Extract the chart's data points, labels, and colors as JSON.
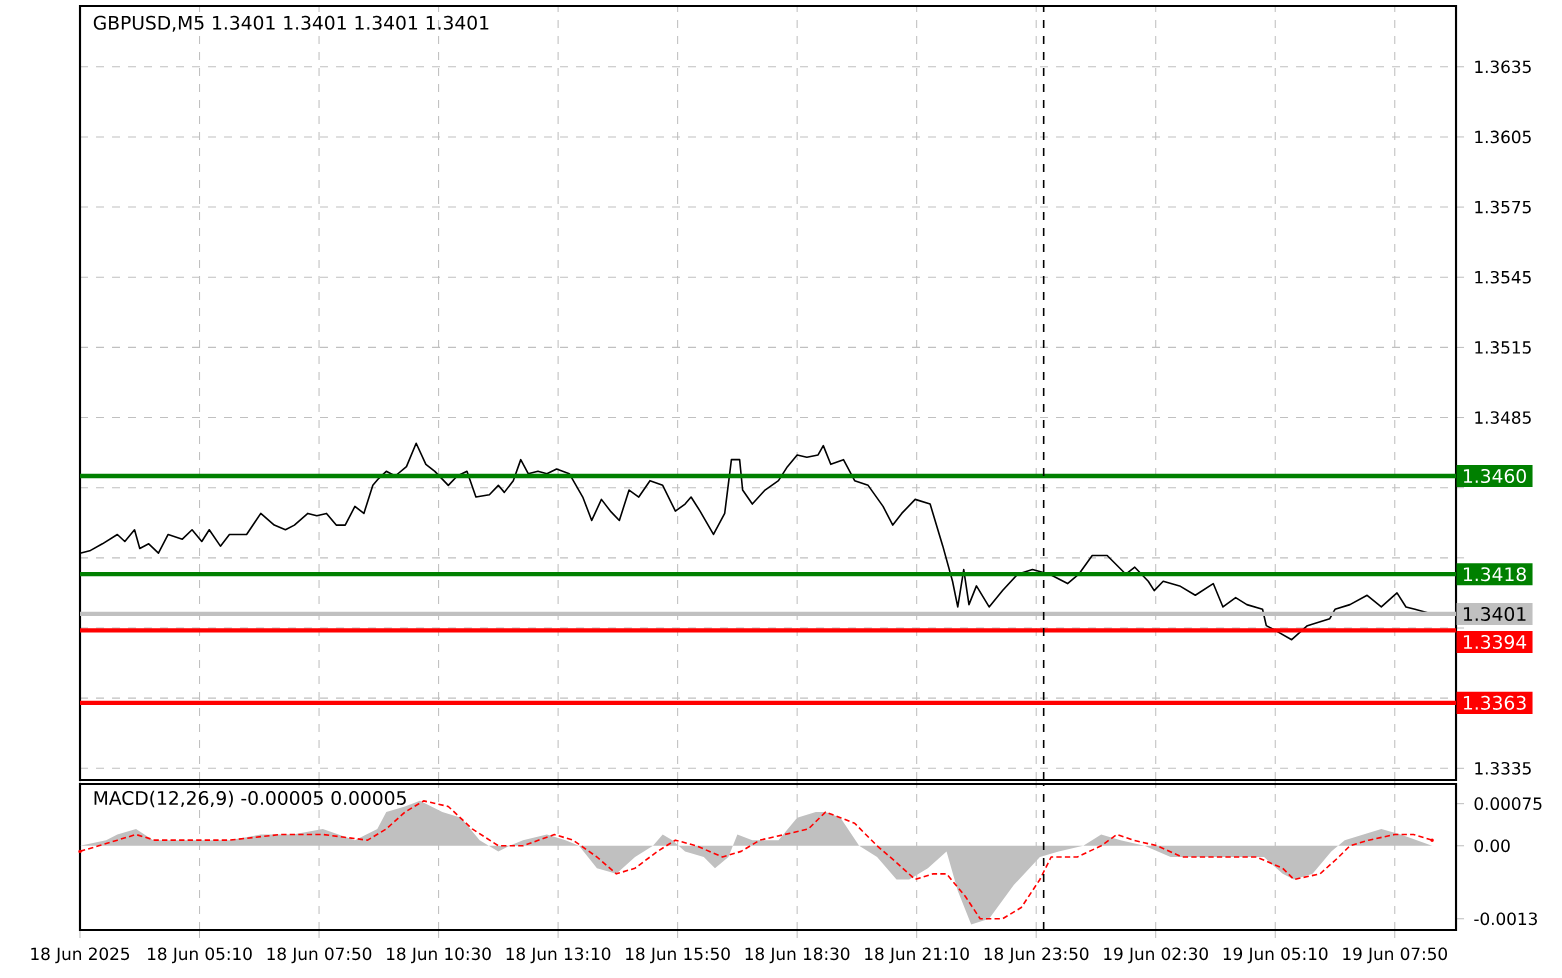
{
  "chart_data": [
    {
      "type": "line",
      "title": "GBPUSD,M5  1.3401 1.3401 1.3401 1.3401",
      "series": [
        {
          "color": "#000000",
          "x": [
            "2025-06-18T02:30",
            "2025-06-18T02:43",
            "2025-06-18T03:00",
            "2025-06-18T03:20",
            "2025-06-18T03:30",
            "2025-06-18T03:43",
            "2025-06-18T03:50",
            "2025-06-18T04:02",
            "2025-06-18T04:15",
            "2025-06-18T04:28",
            "2025-06-18T04:47",
            "2025-06-18T05:00",
            "2025-06-18T05:13",
            "2025-06-18T05:23",
            "2025-06-18T05:38",
            "2025-06-18T05:50",
            "2025-06-18T06:13",
            "2025-06-18T06:32",
            "2025-06-18T06:50",
            "2025-06-18T07:05",
            "2025-06-18T07:17",
            "2025-06-18T07:35",
            "2025-06-18T07:47",
            "2025-06-18T08:00",
            "2025-06-18T08:13",
            "2025-06-18T08:25",
            "2025-06-18T08:38",
            "2025-06-18T08:50",
            "2025-06-18T09:02",
            "2025-06-18T09:10",
            "2025-06-18T09:20",
            "2025-06-18T09:32",
            "2025-06-18T09:47",
            "2025-06-18T10:00",
            "2025-06-18T10:13",
            "2025-06-18T10:25",
            "2025-06-18T10:43",
            "2025-06-18T10:55",
            "2025-06-18T11:08",
            "2025-06-18T11:20",
            "2025-06-18T11:38",
            "2025-06-18T11:50",
            "2025-06-18T11:58",
            "2025-06-18T12:10",
            "2025-06-18T12:20",
            "2025-06-18T12:30",
            "2025-06-18T12:43",
            "2025-06-18T12:55",
            "2025-06-18T13:08",
            "2025-06-18T13:25",
            "2025-06-18T13:43",
            "2025-06-18T13:55",
            "2025-06-18T14:08",
            "2025-06-18T14:20",
            "2025-06-18T14:32",
            "2025-06-18T14:45",
            "2025-06-18T14:58",
            "2025-06-18T15:13",
            "2025-06-18T15:30",
            "2025-06-18T15:47",
            "2025-06-18T16:00",
            "2025-06-18T16:08",
            "2025-06-18T16:20",
            "2025-06-18T16:38",
            "2025-06-18T16:53",
            "2025-06-18T17:02",
            "2025-06-18T17:13",
            "2025-06-18T17:17",
            "2025-06-18T17:30",
            "2025-06-18T17:47",
            "2025-06-18T18:05",
            "2025-06-18T18:17",
            "2025-06-18T18:30",
            "2025-06-18T18:43",
            "2025-06-18T18:58",
            "2025-06-18T19:05",
            "2025-06-18T19:15",
            "2025-06-18T19:32",
            "2025-06-18T19:47",
            "2025-06-18T20:05",
            "2025-06-18T20:25",
            "2025-06-18T20:38",
            "2025-06-18T20:50",
            "2025-06-18T21:08",
            "2025-06-18T21:28",
            "2025-06-18T21:45",
            "2025-06-18T21:58",
            "2025-06-18T22:05",
            "2025-06-18T22:13",
            "2025-06-18T22:20",
            "2025-06-18T22:30",
            "2025-06-18T22:47",
            "2025-06-18T23:05",
            "2025-06-18T23:25",
            "2025-06-18T23:45",
            "2025-06-19T00:08",
            "2025-06-19T00:32",
            "2025-06-19T00:47",
            "2025-06-19T01:05",
            "2025-06-19T01:25",
            "2025-06-19T01:50",
            "2025-06-19T02:02",
            "2025-06-19T02:20",
            "2025-06-19T02:28",
            "2025-06-19T02:40",
            "2025-06-19T03:02",
            "2025-06-19T03:23",
            "2025-06-19T03:47",
            "2025-06-19T04:00",
            "2025-06-19T04:17",
            "2025-06-19T04:32",
            "2025-06-19T04:53",
            "2025-06-19T04:58",
            "2025-06-19T05:10",
            "2025-06-19T05:32",
            "2025-06-19T05:53",
            "2025-06-19T06:23",
            "2025-06-19T06:30",
            "2025-06-19T06:50",
            "2025-06-19T07:13",
            "2025-06-19T07:32",
            "2025-06-19T07:53",
            "2025-06-19T08:05",
            "2025-06-19T08:17",
            "2025-06-19T08:40"
          ],
          "values": [
            1.3427,
            1.3428,
            1.3431,
            1.3435,
            1.3432,
            1.3437,
            1.3429,
            1.3431,
            1.3427,
            1.3435,
            1.3433,
            1.3437,
            1.3432,
            1.3437,
            1.343,
            1.3435,
            1.3435,
            1.3444,
            1.3439,
            1.3437,
            1.3439,
            1.3444,
            1.3443,
            1.3444,
            1.3439,
            1.3439,
            1.3447,
            1.3444,
            1.3456,
            1.3459,
            1.3462,
            1.346,
            1.3464,
            1.3474,
            1.3465,
            1.3462,
            1.3456,
            1.346,
            1.3462,
            1.3451,
            1.3452,
            1.3456,
            1.3453,
            1.3458,
            1.3467,
            1.3461,
            1.3462,
            1.3461,
            1.3463,
            1.3461,
            1.3451,
            1.3441,
            1.345,
            1.3445,
            1.3441,
            1.3454,
            1.3451,
            1.3458,
            1.3456,
            1.3445,
            1.3448,
            1.3451,
            1.3445,
            1.3435,
            1.3444,
            1.3467,
            1.3467,
            1.3454,
            1.3448,
            1.3454,
            1.3458,
            1.3464,
            1.3469,
            1.3468,
            1.3469,
            1.3473,
            1.3465,
            1.3467,
            1.3458,
            1.3456,
            1.3447,
            1.3439,
            1.3444,
            1.345,
            1.3448,
            1.343,
            1.3415,
            1.3404,
            1.342,
            1.3405,
            1.3413,
            1.3404,
            1.3411,
            1.3418,
            1.342,
            1.3418,
            1.3414,
            1.3418,
            1.3426,
            1.3426,
            1.3418,
            1.3421,
            1.3415,
            1.3411,
            1.3415,
            1.3413,
            1.3409,
            1.3414,
            1.3404,
            1.3408,
            1.3405,
            1.3403,
            1.3396,
            1.3394,
            1.339,
            1.3396,
            1.3399,
            1.3403,
            1.3405,
            1.3409,
            1.3404,
            1.341,
            1.3404,
            1.3403,
            1.3401
          ]
        }
      ],
      "xlim": [
        "2025-06-18T02:30",
        "2025-06-19T09:12"
      ],
      "ylim": [
        1.333,
        1.3661
      ],
      "xticks": [
        {
          "value": "2025-06-18T02:30",
          "label": null
        },
        {
          "value": "2025-06-18T05:10",
          "label": null
        },
        {
          "value": "2025-06-18T07:50",
          "label": null
        },
        {
          "value": "2025-06-18T10:30",
          "label": null
        },
        {
          "value": "2025-06-18T13:10",
          "label": null
        },
        {
          "value": "2025-06-18T15:50",
          "label": null
        },
        {
          "value": "2025-06-18T18:30",
          "label": null
        },
        {
          "value": "2025-06-18T21:10",
          "label": null
        },
        {
          "value": "2025-06-18T23:50",
          "label": null
        },
        {
          "value": "2025-06-19T02:30",
          "label": null
        },
        {
          "value": "2025-06-19T05:10",
          "label": null
        },
        {
          "value": "2025-06-19T07:50",
          "label": null
        }
      ],
      "yticks": [
        {
          "value": 1.3635,
          "label": "1.3635"
        },
        {
          "value": 1.3605,
          "label": "1.3605"
        },
        {
          "value": 1.3575,
          "label": "1.3575"
        },
        {
          "value": 1.3545,
          "label": "1.3545"
        },
        {
          "value": 1.3515,
          "label": "1.3515"
        },
        {
          "value": 1.3485,
          "label": "1.3485"
        },
        {
          "value": 1.3455,
          "label": null
        },
        {
          "value": 1.3425,
          "label": null
        },
        {
          "value": 1.3395,
          "label": null
        },
        {
          "value": 1.3365,
          "label": null
        },
        {
          "value": 1.3335,
          "label": "1.3335"
        }
      ],
      "tick_labels": "y",
      "grid": true,
      "ref_lines": [
        {
          "axis": "y",
          "value": 1.346,
          "label": "1.3460",
          "color": "#008000"
        },
        {
          "axis": "y",
          "value": 1.3418,
          "label": "1.3418",
          "color": "#008000"
        },
        {
          "axis": "y",
          "value": 1.3401,
          "label": "1.3401",
          "color": "#c0c0c0"
        },
        {
          "axis": "y",
          "value": 1.3394,
          "label": "1.3394",
          "color": "#ff0000"
        },
        {
          "axis": "y",
          "value": 1.3363,
          "label": "1.3363",
          "color": "#ff0000"
        },
        {
          "axis": "x",
          "value": "2025-06-19T00:00",
          "color": "#000000",
          "line_style": "dashed"
        }
      ]
    },
    {
      "type": "line",
      "title": "MACD(12,26,9) -0.00005 0.00005",
      "series": [
        {
          "type": "area",
          "color": "#c0c0c0",
          "x": [
            "2025-06-18T02:30",
            "2025-06-18T03:05",
            "2025-06-18T03:20",
            "2025-06-18T03:45",
            "2025-06-18T04:08",
            "2025-06-18T04:28",
            "2025-06-18T05:50",
            "2025-06-18T06:32",
            "2025-06-18T07:15",
            "2025-06-18T07:55",
            "2025-06-18T08:38",
            "2025-06-18T09:08",
            "2025-06-18T09:20",
            "2025-06-18T09:45",
            "2025-06-18T10:05",
            "2025-06-18T10:35",
            "2025-06-18T11:00",
            "2025-06-18T11:25",
            "2025-06-18T11:50",
            "2025-06-18T12:05",
            "2025-06-18T12:23",
            "2025-06-18T12:55",
            "2025-06-18T13:20",
            "2025-06-18T13:38",
            "2025-06-18T14:02",
            "2025-06-18T14:28",
            "2025-06-18T14:53",
            "2025-06-18T15:17",
            "2025-06-18T15:30",
            "2025-06-18T15:43",
            "2025-06-18T16:00",
            "2025-06-18T16:25",
            "2025-06-18T16:40",
            "2025-06-18T16:58",
            "2025-06-18T17:10",
            "2025-06-18T17:30",
            "2025-06-18T18:05",
            "2025-06-18T18:30",
            "2025-06-18T18:55",
            "2025-06-18T19:08",
            "2025-06-18T19:28",
            "2025-06-18T19:53",
            "2025-06-18T20:17",
            "2025-06-18T20:43",
            "2025-06-18T21:00",
            "2025-06-18T21:25",
            "2025-06-18T21:50",
            "2025-06-18T22:05",
            "2025-06-18T22:23",
            "2025-06-18T22:47",
            "2025-06-18T23:20",
            "2025-06-18T23:55",
            "2025-06-19T00:20",
            "2025-06-19T00:53",
            "2025-06-19T01:17",
            "2025-06-19T01:43",
            "2025-06-19T02:15",
            "2025-06-19T02:50",
            "2025-06-19T03:55",
            "2025-06-19T04:55",
            "2025-06-19T05:20",
            "2025-06-19T05:35",
            "2025-06-19T06:00",
            "2025-06-19T06:25",
            "2025-06-19T06:43",
            "2025-06-19T07:08",
            "2025-06-19T07:32",
            "2025-06-19T07:58",
            "2025-06-19T08:40"
          ],
          "values": [
            0,
            0.0001,
            0.0002,
            0.0003,
            0.0001,
            0.0001,
            0.0001,
            0.0002,
            0.0002,
            0.0003,
            0.0001,
            0.0003,
            0.0006,
            0.0007,
            0.0008,
            0.0006,
            0.0005,
            0.0001,
            -0.0001,
            0,
            0.0001,
            0.0002,
            0.0001,
            0,
            -0.0004,
            -0.0005,
            -0.0002,
            0,
            0.0002,
            0.0001,
            -0.0001,
            -0.0002,
            -0.0004,
            -0.0002,
            0.0002,
            0.0001,
            0.0001,
            0.0005,
            0.0006,
            0.0006,
            0.0005,
            0,
            -0.0002,
            -0.0006,
            -0.0006,
            -0.0004,
            -0.0001,
            -0.0008,
            -0.0014,
            -0.0013,
            -0.0007,
            -0.0002,
            -0.0001,
            0,
            0.0002,
            0.0001,
            0,
            -0.0002,
            -0.0002,
            -0.0002,
            -0.0005,
            -0.0006,
            -0.0005,
            -0.0001,
            0.0001,
            0.0002,
            0.0003,
            0.0002,
            0
          ]
        },
        {
          "type": "line",
          "color": "#ff0000",
          "line_style": "dashed",
          "x": [
            "2025-06-18T02:30",
            "2025-06-18T02:55",
            "2025-06-18T03:20",
            "2025-06-18T03:45",
            "2025-06-18T04:10",
            "2025-06-18T05:50",
            "2025-06-18T06:58",
            "2025-06-18T07:55",
            "2025-06-18T08:55",
            "2025-06-18T09:20",
            "2025-06-18T09:45",
            "2025-06-18T10:10",
            "2025-06-18T10:43",
            "2025-06-18T11:15",
            "2025-06-18T11:50",
            "2025-06-18T12:23",
            "2025-06-18T13:05",
            "2025-06-18T13:30",
            "2025-06-18T14:02",
            "2025-06-18T14:28",
            "2025-06-18T14:53",
            "2025-06-18T15:23",
            "2025-06-18T15:47",
            "2025-06-18T16:15",
            "2025-06-18T16:50",
            "2025-06-18T17:15",
            "2025-06-18T17:40",
            "2025-06-18T18:13",
            "2025-06-18T18:45",
            "2025-06-18T19:08",
            "2025-06-18T19:28",
            "2025-06-18T19:47",
            "2025-06-18T20:17",
            "2025-06-18T20:43",
            "2025-06-18T21:08",
            "2025-06-18T21:32",
            "2025-06-18T21:50",
            "2025-06-18T22:15",
            "2025-06-18T22:35",
            "2025-06-18T23:05",
            "2025-06-18T23:30",
            "2025-06-18T23:55",
            "2025-06-19T00:10",
            "2025-06-19T00:45",
            "2025-06-19T01:17",
            "2025-06-19T01:38",
            "2025-06-19T02:00",
            "2025-06-19T02:32",
            "2025-06-19T03:05",
            "2025-06-19T03:40",
            "2025-06-19T04:45",
            "2025-06-19T05:20",
            "2025-06-19T05:35",
            "2025-06-19T06:10",
            "2025-06-19T06:35",
            "2025-06-19T06:50",
            "2025-06-19T07:15",
            "2025-06-19T07:50",
            "2025-06-19T08:15",
            "2025-06-19T08:40"
          ],
          "values": [
            -0.0001,
            0,
            0.0001,
            0.0002,
            0.0001,
            0.0001,
            0.0002,
            0.0002,
            0.0001,
            0.0003,
            0.0006,
            0.0008,
            0.0007,
            0.0003,
            0,
            0,
            0.0002,
            0.0001,
            -0.0002,
            -0.0005,
            -0.0004,
            -0.0001,
            0.0001,
            0,
            -0.0002,
            -0.0001,
            0.0001,
            0.0002,
            0.0003,
            0.0006,
            0.0005,
            0.0004,
            0,
            -0.0003,
            -0.0006,
            -0.0005,
            -0.0005,
            -0.0009,
            -0.0013,
            -0.0013,
            -0.0011,
            -0.0006,
            -0.0002,
            -0.0002,
            0,
            0.0002,
            0.0001,
            0,
            -0.0002,
            -0.0002,
            -0.0002,
            -0.0004,
            -0.0006,
            -0.0005,
            -0.0002,
            0,
            0.0001,
            0.0002,
            0.0002,
            0.0001
          ]
        }
      ],
      "xlim": [
        "2025-06-18T02:30",
        "2025-06-19T09:12"
      ],
      "ylim": [
        -0.0015,
        0.0011
      ],
      "xticks": [
        {
          "value": "2025-06-18T02:30",
          "label": "18 Jun 2025"
        },
        {
          "value": "2025-06-18T05:10",
          "label": "18 Jun 05:10"
        },
        {
          "value": "2025-06-18T07:50",
          "label": "18 Jun 07:50"
        },
        {
          "value": "2025-06-18T10:30",
          "label": "18 Jun 10:30"
        },
        {
          "value": "2025-06-18T13:10",
          "label": "18 Jun 13:10"
        },
        {
          "value": "2025-06-18T15:50",
          "label": "18 Jun 15:50"
        },
        {
          "value": "2025-06-18T18:30",
          "label": "18 Jun 18:30"
        },
        {
          "value": "2025-06-18T21:10",
          "label": "18 Jun 21:10"
        },
        {
          "value": "2025-06-18T23:50",
          "label": "18 Jun 23:50"
        },
        {
          "value": "2025-06-19T02:30",
          "label": "19 Jun 02:30"
        },
        {
          "value": "2025-06-19T05:10",
          "label": "19 Jun 05:10"
        },
        {
          "value": "2025-06-19T07:50",
          "label": "19 Jun 07:50"
        }
      ],
      "yticks": [
        {
          "value": 0.00075,
          "label": "0.00075"
        },
        {
          "value": 0,
          "label": "0.00"
        },
        {
          "value": -0.0013,
          "label": "-0.0013"
        }
      ],
      "grid": "x",
      "ref_lines": [
        {
          "axis": "x",
          "value": "2025-06-19T00:00",
          "color": "#000000",
          "line_style": "dashed"
        }
      ]
    }
  ]
}
